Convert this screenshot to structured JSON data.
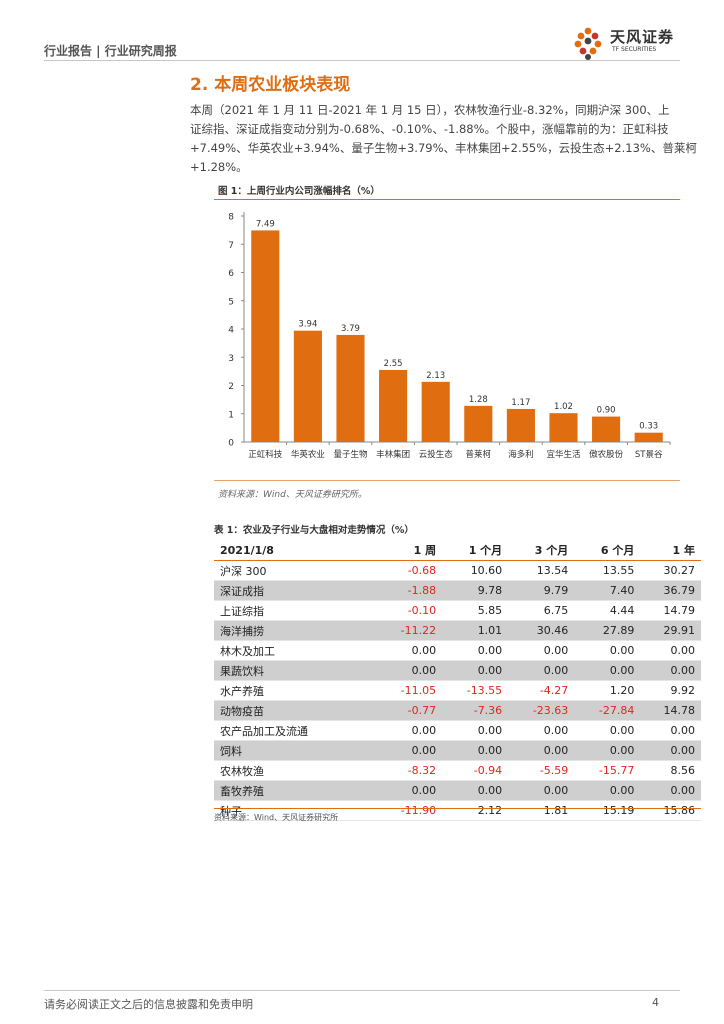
{
  "header": {
    "left": "行业报告 | 行业研究周报",
    "logo_name": "天风证券",
    "logo_sub": "TF SECURITIES"
  },
  "section_title": "2. 本周农业板块表现",
  "paragraph_lines": [
    "本周（2021 年 1 月 11 日-2021 年 1 月 15 日），农林牧渔行业-8.32%，同期沪深 300、上",
    "证综指、深证成指变动分别为-0.68%、-0.10%、-1.88%。个股中，涨幅靠前的为：正虹科技",
    "+7.49%、华英农业+3.94%、量子生物+3.79%、丰林集团+2.55%，云投生态+2.13%、普莱柯",
    "+1.28%。"
  ],
  "figure": {
    "title": "图 1：上周行业内公司涨幅排名（%）",
    "source": "资料来源：Wind、天风证券研究所。"
  },
  "chart_data": {
    "type": "bar",
    "categories": [
      "正虹科技",
      "华英农业",
      "量子生物",
      "丰林集团",
      "云投生态",
      "普莱柯",
      "海多利",
      "宜华生活",
      "傲农股份",
      "ST景谷"
    ],
    "values": [
      7.49,
      3.94,
      3.79,
      2.55,
      2.13,
      1.28,
      1.17,
      1.02,
      0.9,
      0.33
    ],
    "value_labels": [
      "7.49",
      "3.94",
      "3.79",
      "2.55",
      "2.13",
      "1.28",
      "1.17",
      "1.02",
      "0.90",
      "0.33"
    ],
    "ylim": [
      0,
      8
    ],
    "yticks": [
      0,
      1,
      2,
      3,
      4,
      5,
      6,
      7,
      8
    ],
    "bar_color": "#e06d10",
    "grid": false,
    "legend": "none"
  },
  "table": {
    "title": "表 1：农业及子行业与大盘相对走势情况（%）",
    "headers": [
      "2021/1/8",
      "1 周",
      "1 个月",
      "3 个月",
      "6 个月",
      "1 年"
    ],
    "rows": [
      {
        "name": "沪深 300",
        "shade": false,
        "values": [
          "-0.68",
          "10.60",
          "13.54",
          "13.55",
          "30.27"
        ]
      },
      {
        "name": "深证成指",
        "shade": true,
        "values": [
          "-1.88",
          "9.78",
          "9.79",
          "7.40",
          "36.79"
        ]
      },
      {
        "name": "上证综指",
        "shade": false,
        "values": [
          "-0.10",
          "5.85",
          "6.75",
          "4.44",
          "14.79"
        ]
      },
      {
        "name": "海洋捕捞",
        "shade": true,
        "values": [
          "-11.22",
          "1.01",
          "30.46",
          "27.89",
          "29.91"
        ]
      },
      {
        "name": "林木及加工",
        "shade": false,
        "values": [
          "0.00",
          "0.00",
          "0.00",
          "0.00",
          "0.00"
        ]
      },
      {
        "name": "果蔬饮料",
        "shade": true,
        "values": [
          "0.00",
          "0.00",
          "0.00",
          "0.00",
          "0.00"
        ]
      },
      {
        "name": "水产养殖",
        "shade": false,
        "values": [
          "-11.05",
          "-13.55",
          "-4.27",
          "1.20",
          "9.92"
        ]
      },
      {
        "name": "动物疫苗",
        "shade": true,
        "values": [
          "-0.77",
          "-7.36",
          "-23.63",
          "-27.84",
          "14.78"
        ]
      },
      {
        "name": "农产品加工及流通",
        "shade": false,
        "values": [
          "0.00",
          "0.00",
          "0.00",
          "0.00",
          "0.00"
        ]
      },
      {
        "name": "饲料",
        "shade": true,
        "values": [
          "0.00",
          "0.00",
          "0.00",
          "0.00",
          "0.00"
        ]
      },
      {
        "name": "农林牧渔",
        "shade": false,
        "values": [
          "-8.32",
          "-0.94",
          "-5.59",
          "-15.77",
          "8.56"
        ]
      },
      {
        "name": "畜牧养殖",
        "shade": true,
        "values": [
          "0.00",
          "0.00",
          "0.00",
          "0.00",
          "0.00"
        ]
      },
      {
        "name": "种子",
        "shade": false,
        "values": [
          "-11.90",
          "2.12",
          "1.81",
          "15.19",
          "15.86"
        ]
      }
    ],
    "source": "资料来源：Wind、天风证券研究所"
  },
  "colors": {
    "accent": "#e06d10",
    "negative": "#e0261e",
    "row_shade": "#cfcfcf"
  },
  "footer": {
    "disclaimer": "请务必阅读正文之后的信息披露和免责申明",
    "page_number": "4"
  }
}
